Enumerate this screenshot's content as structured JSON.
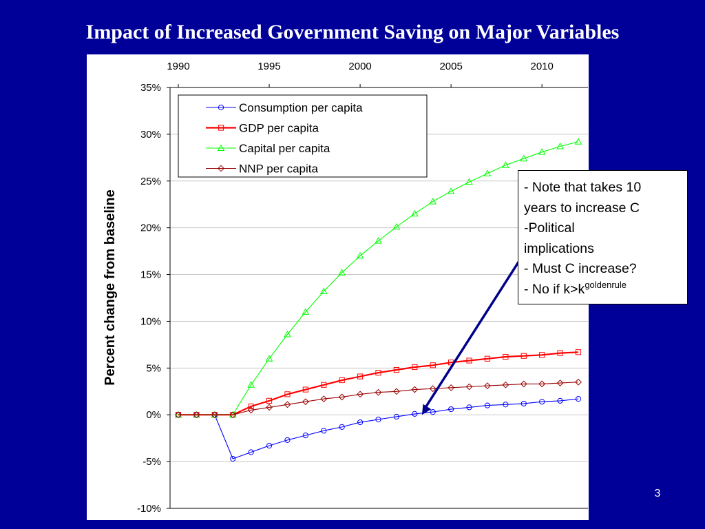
{
  "slide": {
    "title": "Impact of Increased Government Saving on Major Variables",
    "page_number": "3",
    "background_color": "#000099"
  },
  "note": {
    "lines": [
      "- Note that takes 10",
      "years to increase C",
      "-Political",
      "implications",
      "- Must C increase?"
    ],
    "last_line_prefix": "- No if k>k",
    "last_line_superscript": "goldenrule"
  },
  "chart_data": {
    "type": "line",
    "title": "",
    "xlabel": "",
    "ylabel": "Percent change from baseline",
    "x_ticks": [
      "1990",
      "1995",
      "2000",
      "2005",
      "2010"
    ],
    "x_tick_values": [
      1990,
      1995,
      2000,
      2005,
      2010
    ],
    "xlim": [
      1989,
      2012
    ],
    "y_ticks": [
      "35%",
      "30%",
      "25%",
      "20%",
      "15%",
      "10%",
      "5%",
      "0%",
      "-5%",
      "-10%"
    ],
    "ylim": [
      -10,
      35
    ],
    "y_unit": "%",
    "grid": "horizontal",
    "legend_position": "top-left",
    "x": [
      1990,
      1991,
      1992,
      1993,
      1994,
      1995,
      1996,
      1997,
      1998,
      1999,
      2000,
      2001,
      2002,
      2003,
      2004,
      2005,
      2006,
      2007,
      2008,
      2009,
      2010,
      2011,
      2012
    ],
    "series": [
      {
        "name": "Consumption per capita",
        "color": "#0000ff",
        "marker": "circle",
        "values": [
          0,
          0,
          0,
          -4.7,
          -4.0,
          -3.3,
          -2.7,
          -2.2,
          -1.7,
          -1.3,
          -0.8,
          -0.5,
          -0.2,
          0.1,
          0.3,
          0.6,
          0.8,
          1.0,
          1.1,
          1.2,
          1.4,
          1.5,
          1.7
        ]
      },
      {
        "name": "GDP per capita",
        "color": "#ff0000",
        "marker": "square",
        "values": [
          0,
          0,
          0,
          0,
          0.9,
          1.5,
          2.2,
          2.7,
          3.2,
          3.7,
          4.1,
          4.5,
          4.8,
          5.1,
          5.3,
          5.6,
          5.8,
          6.0,
          6.2,
          6.3,
          6.4,
          6.6,
          6.7
        ]
      },
      {
        "name": "Capital per capita",
        "color": "#00ff00",
        "marker": "triangle",
        "values": [
          0,
          0,
          0,
          0,
          3.2,
          6.0,
          8.6,
          11.0,
          13.2,
          15.2,
          17.0,
          18.6,
          20.1,
          21.5,
          22.8,
          23.9,
          24.9,
          25.8,
          26.7,
          27.4,
          28.1,
          28.7,
          29.2
        ]
      },
      {
        "name": "NNP per capita",
        "color": "#990000",
        "marker": "diamond",
        "values": [
          0,
          0,
          0,
          0,
          0.5,
          0.8,
          1.1,
          1.4,
          1.7,
          1.9,
          2.2,
          2.4,
          2.5,
          2.7,
          2.8,
          2.9,
          3.0,
          3.1,
          3.2,
          3.3,
          3.3,
          3.4,
          3.5
        ]
      }
    ]
  }
}
